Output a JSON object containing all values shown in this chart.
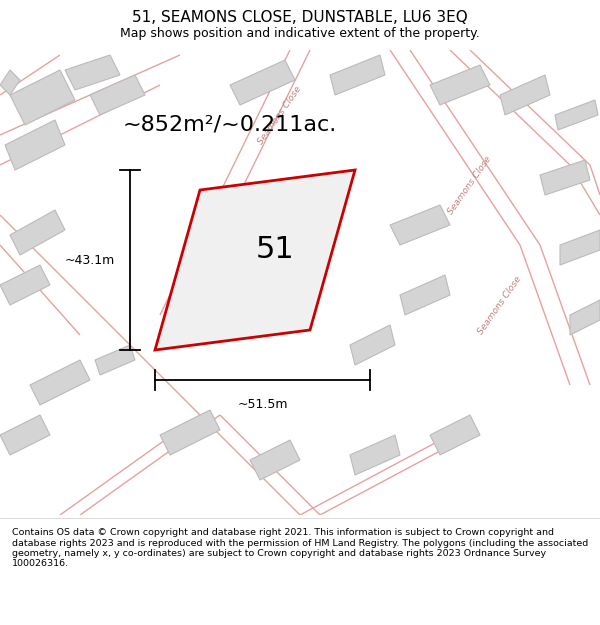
{
  "title": "51, SEAMONS CLOSE, DUNSTABLE, LU6 3EQ",
  "subtitle": "Map shows position and indicative extent of the property.",
  "area_text": "~852m²/~0.211ac.",
  "plot_number": "51",
  "dim_width": "~51.5m",
  "dim_height": "~43.1m",
  "footer": "Contains OS data © Crown copyright and database right 2021. This information is subject to Crown copyright and database rights 2023 and is reproduced with the permission of HM Land Registry. The polygons (including the associated geometry, namely x, y co-ordinates) are subject to Crown copyright and database rights 2023 Ordnance Survey 100026316.",
  "bg_color": "#f0f0f0",
  "map_bg": "#f0f0f0",
  "plot_edge_color": "#cc0000",
  "building_fill": "#d4d4d4",
  "building_edge": "#bbbbbb",
  "road_color": "#e8a0a0",
  "road_fill": "#f0f0f0",
  "title_fontsize": 11,
  "subtitle_fontsize": 9,
  "footer_fontsize": 6.8,
  "area_fontsize": 16,
  "dim_fontsize": 9,
  "label_fontsize": 6.5,
  "plot_num_fontsize": 22
}
